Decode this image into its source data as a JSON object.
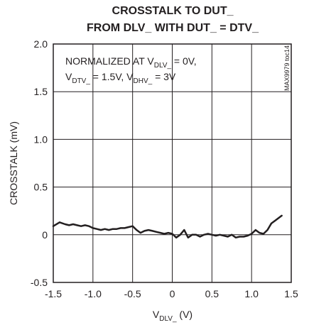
{
  "chart_data": {
    "type": "line",
    "title_lines": [
      "CROSSTALK TO DUT_",
      "FROM DLV_ WITH DUT_ = DTV_"
    ],
    "xlabel": {
      "main": "V",
      "sub": "DLV_",
      "tail": " (V)"
    },
    "ylabel": "CROSSTALK (mV)",
    "xlim": [
      -1.5,
      1.5
    ],
    "ylim": [
      -0.5,
      2.0
    ],
    "xticks": [
      -1.5,
      -1.0,
      -0.5,
      0,
      0.5,
      1.0,
      1.5
    ],
    "xtick_labels": [
      "-1.5",
      "-1.0",
      "-0.5",
      "0",
      "0.5",
      "1.0",
      "1.5"
    ],
    "yticks": [
      -0.5,
      0,
      0.5,
      1.0,
      1.5,
      2.0
    ],
    "ytick_labels": [
      "-0.5",
      "0",
      "0.5",
      "1.0",
      "1.5",
      "2.0"
    ],
    "grid": true,
    "annotation": {
      "line1": {
        "pre": "NORMALIZED AT V",
        "sub": "DLV_",
        "post": " = 0V,"
      },
      "line2": [
        {
          "main": "V",
          "sub": "DTV_",
          "post": " = 1.5V, "
        },
        {
          "main": "V",
          "sub": "DHV_",
          "post": " = 3V"
        }
      ]
    },
    "side_id": "MAX9979 toc14",
    "series": [
      {
        "x": [
          -1.5,
          -1.42,
          -1.35,
          -1.3,
          -1.25,
          -1.2,
          -1.15,
          -1.1,
          -1.05,
          -1.0,
          -0.95,
          -0.9,
          -0.85,
          -0.8,
          -0.75,
          -0.7,
          -0.65,
          -0.6,
          -0.55,
          -0.5,
          -0.45,
          -0.4,
          -0.35,
          -0.3,
          -0.25,
          -0.2,
          -0.15,
          -0.1,
          -0.05,
          0.0,
          0.05,
          0.1,
          0.15,
          0.2,
          0.25,
          0.3,
          0.35,
          0.4,
          0.45,
          0.5,
          0.55,
          0.6,
          0.65,
          0.7,
          0.75,
          0.8,
          0.85,
          0.9,
          0.95,
          1.0,
          1.05,
          1.1,
          1.15,
          1.2,
          1.25,
          1.3,
          1.38
        ],
        "y": [
          0.09,
          0.13,
          0.11,
          0.1,
          0.11,
          0.1,
          0.09,
          0.1,
          0.09,
          0.07,
          0.06,
          0.05,
          0.06,
          0.05,
          0.06,
          0.06,
          0.07,
          0.07,
          0.08,
          0.09,
          0.05,
          0.02,
          0.04,
          0.05,
          0.04,
          0.03,
          0.02,
          0.01,
          0.02,
          0.01,
          -0.03,
          0.0,
          0.05,
          -0.03,
          0.0,
          0.0,
          -0.02,
          0.0,
          0.01,
          0.0,
          -0.01,
          0.0,
          -0.01,
          -0.02,
          0.0,
          -0.03,
          -0.02,
          -0.02,
          -0.01,
          0.01,
          0.05,
          0.02,
          0.01,
          0.05,
          0.12,
          0.15,
          0.2
        ]
      }
    ]
  }
}
